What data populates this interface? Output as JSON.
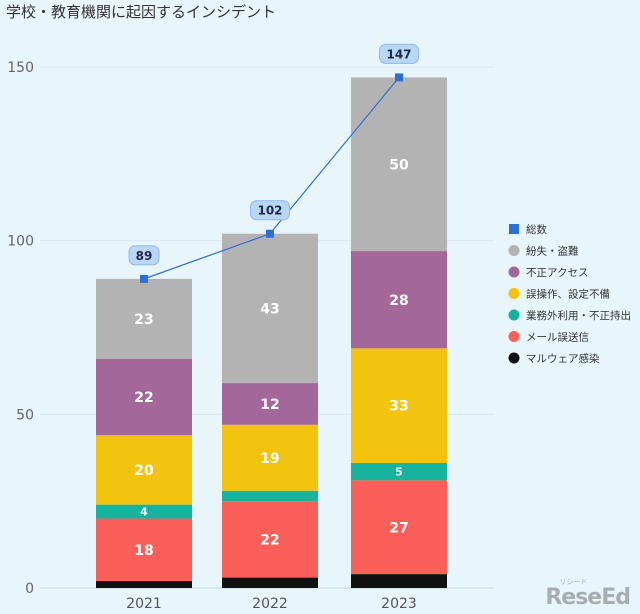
{
  "title": "学校・教育機関に起因するインシデント",
  "watermark": {
    "main": "ReseEd",
    "sub": "リシード"
  },
  "chart_data": {
    "type": "bar",
    "stacked": true,
    "categories": [
      "2021",
      "2022",
      "2023"
    ],
    "ylim": [
      0,
      150
    ],
    "yticks": [
      0,
      50,
      100,
      150
    ],
    "grid": true,
    "legend_position": "right",
    "series": [
      {
        "name": "マルウェア感染",
        "color": "#111111",
        "values": [
          2,
          3,
          4
        ],
        "show_labels": false
      },
      {
        "name": "メール誤送信",
        "color": "#fa5f5a",
        "values": [
          18,
          22,
          27
        ],
        "show_labels": true
      },
      {
        "name": "業務外利用・不正持出",
        "color": "#17b39c",
        "values": [
          4,
          3,
          5
        ],
        "show_labels": [
          true,
          false,
          true
        ]
      },
      {
        "name": "誤操作、設定不備",
        "color": "#f2c40f",
        "values": [
          20,
          19,
          33
        ],
        "show_labels": true
      },
      {
        "name": "不正アクセス",
        "color": "#a3679a",
        "values": [
          22,
          12,
          28
        ],
        "show_labels": true
      },
      {
        "name": "紛失・盗難",
        "color": "#b3b3b3",
        "values": [
          23,
          43,
          50
        ],
        "show_labels": true
      }
    ],
    "total": {
      "name": "総数",
      "type": "line",
      "color": "#2e6fd6",
      "values": [
        89,
        102,
        147
      ]
    },
    "legend_order": [
      "総数",
      "紛失・盗難",
      "不正アクセス",
      "誤操作、設定不備",
      "業務外利用・不正持出",
      "メール誤送信",
      "マルウェア感染"
    ]
  }
}
